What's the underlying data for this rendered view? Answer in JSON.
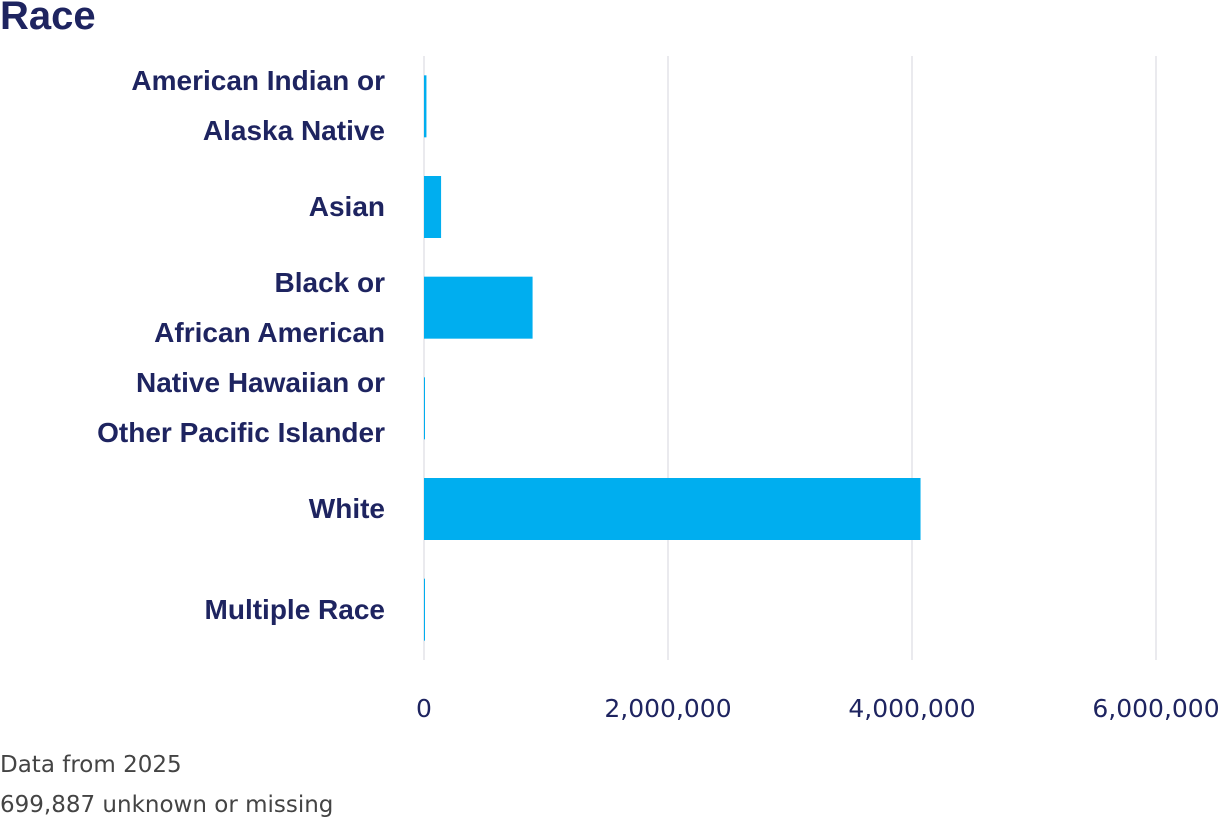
{
  "chart_data": {
    "type": "bar",
    "orientation": "horizontal",
    "title": "Race",
    "categories": [
      "American Indian or\nAlaska Native",
      "Asian",
      "Black or\nAfrican American",
      "Native Hawaiian or\nOther Pacific Islander",
      "White",
      "Multiple Race"
    ],
    "values": [
      20000,
      140000,
      890000,
      5000,
      4070000,
      2000
    ],
    "color": "#00aeef",
    "xlim": [
      0,
      6000000
    ],
    "xticks": [
      0,
      {
        "value": 2000000,
        "label": "2,000,000"
      },
      {
        "value": 4000000,
        "label": "4,000,000"
      },
      {
        "value": 6000000,
        "label": "6,000,000"
      }
    ],
    "grid": true,
    "notes": [
      "Data from 2025",
      "699,887 unknown or missing"
    ]
  }
}
